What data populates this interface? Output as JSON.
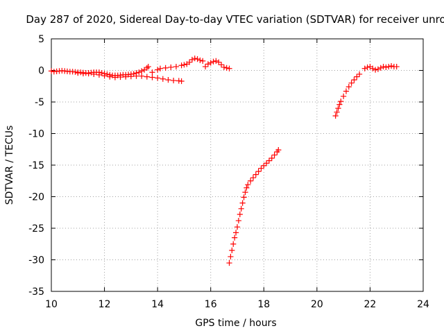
{
  "chart_data": {
    "type": "scatter",
    "title": "Day 287 of 2020, Sidereal Day-to-day VTEC variation (SDTVAR) for receiver unro",
    "xlabel": "GPS time / hours",
    "ylabel": "SDTVAR / TECUs",
    "xlim": [
      10,
      24
    ],
    "ylim": [
      -35,
      5
    ],
    "xticks": [
      10,
      12,
      14,
      16,
      18,
      20,
      22,
      24
    ],
    "yticks": [
      5,
      0,
      -5,
      -10,
      -15,
      -20,
      -25,
      -30,
      -35
    ],
    "xtick_labels": [
      "10",
      "12",
      "14",
      "16",
      "18",
      "20",
      "22",
      "24"
    ],
    "ytick_labels": [
      "5",
      "0",
      "-5",
      "-10",
      "-15",
      "-20",
      "-25",
      "-30",
      "-35"
    ],
    "grid": true,
    "legend": "none",
    "marker": "plus",
    "color": "#ff0000",
    "series": [
      {
        "points": [
          [
            10.0,
            -0.1
          ],
          [
            10.1,
            -0.2
          ],
          [
            10.2,
            -0.15
          ],
          [
            10.3,
            -0.1
          ],
          [
            10.4,
            -0.05
          ],
          [
            10.5,
            -0.1
          ],
          [
            10.6,
            -0.15
          ],
          [
            10.7,
            -0.2
          ],
          [
            10.8,
            -0.2
          ],
          [
            10.9,
            -0.25
          ],
          [
            11.0,
            -0.3
          ],
          [
            11.1,
            -0.3
          ],
          [
            11.2,
            -0.35
          ],
          [
            11.3,
            -0.4
          ],
          [
            11.4,
            -0.4
          ],
          [
            11.5,
            -0.35
          ],
          [
            11.6,
            -0.3
          ],
          [
            11.7,
            -0.3
          ],
          [
            11.8,
            -0.3
          ],
          [
            11.9,
            -0.4
          ],
          [
            12.0,
            -0.5
          ],
          [
            12.1,
            -0.6
          ],
          [
            12.2,
            -0.7
          ],
          [
            12.3,
            -0.8
          ],
          [
            12.4,
            -0.8
          ],
          [
            12.5,
            -0.8
          ],
          [
            12.6,
            -0.75
          ],
          [
            12.7,
            -0.7
          ],
          [
            12.8,
            -0.7
          ],
          [
            12.9,
            -0.65
          ],
          [
            13.0,
            -0.6
          ],
          [
            13.1,
            -0.55
          ],
          [
            13.2,
            -0.4
          ],
          [
            13.3,
            -0.3
          ],
          [
            13.4,
            -0.1
          ],
          [
            13.5,
            0.1
          ],
          [
            13.6,
            0.4
          ],
          [
            13.65,
            0.6
          ]
        ]
      },
      {
        "points": [
          [
            11.0,
            -0.4
          ],
          [
            11.2,
            -0.5
          ],
          [
            11.4,
            -0.5
          ],
          [
            11.6,
            -0.6
          ],
          [
            11.8,
            -0.7
          ],
          [
            12.0,
            -0.85
          ],
          [
            12.2,
            -1.0
          ],
          [
            12.4,
            -1.1
          ],
          [
            12.6,
            -1.05
          ],
          [
            12.8,
            -1.0
          ],
          [
            13.0,
            -0.95
          ],
          [
            13.2,
            -0.9
          ],
          [
            13.4,
            -0.9
          ],
          [
            13.6,
            -1.0
          ],
          [
            13.8,
            -1.1
          ],
          [
            14.0,
            -1.2
          ],
          [
            14.2,
            -1.35
          ],
          [
            14.4,
            -1.5
          ],
          [
            14.6,
            -1.6
          ],
          [
            14.8,
            -1.65
          ],
          [
            14.9,
            -1.7
          ]
        ]
      },
      {
        "points": [
          [
            13.8,
            -0.3
          ],
          [
            14.0,
            0.1
          ],
          [
            14.1,
            0.3
          ],
          [
            14.3,
            0.4
          ],
          [
            14.5,
            0.5
          ],
          [
            14.7,
            0.6
          ],
          [
            14.9,
            0.8
          ],
          [
            15.0,
            0.9
          ],
          [
            15.1,
            1.0
          ],
          [
            15.2,
            1.3
          ],
          [
            15.3,
            1.7
          ],
          [
            15.4,
            1.9
          ],
          [
            15.5,
            1.8
          ],
          [
            15.6,
            1.6
          ],
          [
            15.7,
            1.5
          ]
        ]
      },
      {
        "points": [
          [
            15.8,
            0.6
          ],
          [
            15.9,
            1.0
          ],
          [
            16.0,
            1.2
          ],
          [
            16.1,
            1.4
          ],
          [
            16.2,
            1.5
          ],
          [
            16.3,
            1.3
          ],
          [
            16.4,
            0.9
          ],
          [
            16.5,
            0.5
          ],
          [
            16.6,
            0.4
          ],
          [
            16.7,
            0.3
          ]
        ]
      },
      {
        "points": [
          [
            16.7,
            -30.5
          ],
          [
            16.75,
            -29.5
          ],
          [
            16.8,
            -28.5
          ],
          [
            16.85,
            -27.5
          ],
          [
            16.9,
            -26.5
          ],
          [
            16.95,
            -25.7
          ],
          [
            17.0,
            -24.8
          ],
          [
            17.05,
            -23.8
          ],
          [
            17.1,
            -22.8
          ],
          [
            17.15,
            -21.9
          ],
          [
            17.2,
            -21.0
          ],
          [
            17.25,
            -20.1
          ],
          [
            17.3,
            -19.3
          ],
          [
            17.35,
            -18.6
          ],
          [
            17.4,
            -18.1
          ],
          [
            17.5,
            -17.5
          ],
          [
            17.6,
            -17.0
          ],
          [
            17.7,
            -16.5
          ],
          [
            17.8,
            -16.0
          ],
          [
            17.9,
            -15.5
          ],
          [
            18.0,
            -15.1
          ],
          [
            18.1,
            -14.7
          ],
          [
            18.2,
            -14.3
          ],
          [
            18.3,
            -13.9
          ],
          [
            18.4,
            -13.4
          ],
          [
            18.5,
            -12.9
          ],
          [
            18.55,
            -12.6
          ]
        ]
      },
      {
        "points": [
          [
            20.7,
            -7.2
          ],
          [
            20.75,
            -6.6
          ],
          [
            20.8,
            -6.0
          ],
          [
            20.85,
            -5.4
          ],
          [
            20.9,
            -4.9
          ],
          [
            21.0,
            -4.1
          ],
          [
            21.1,
            -3.3
          ],
          [
            21.2,
            -2.6
          ],
          [
            21.3,
            -2.0
          ],
          [
            21.4,
            -1.5
          ],
          [
            21.5,
            -1.0
          ],
          [
            21.6,
            -0.6
          ]
        ]
      },
      {
        "points": [
          [
            21.8,
            0.3
          ],
          [
            21.9,
            0.5
          ],
          [
            22.0,
            0.6
          ],
          [
            22.1,
            0.3
          ],
          [
            22.2,
            0.1
          ],
          [
            22.3,
            0.2
          ],
          [
            22.4,
            0.4
          ],
          [
            22.5,
            0.6
          ],
          [
            22.6,
            0.5
          ],
          [
            22.7,
            0.6
          ],
          [
            22.8,
            0.7
          ],
          [
            22.9,
            0.6
          ],
          [
            23.0,
            0.6
          ]
        ]
      }
    ]
  }
}
